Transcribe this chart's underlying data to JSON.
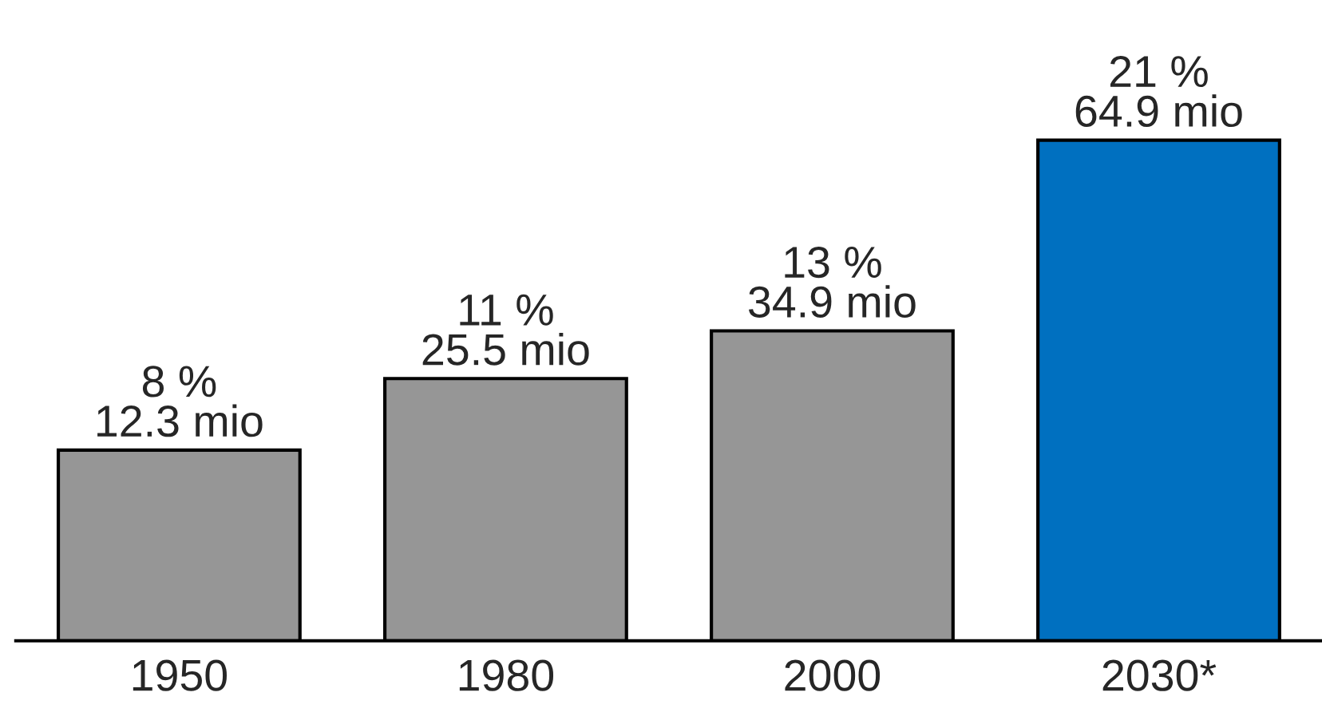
{
  "chart_data": {
    "type": "bar",
    "categories": [
      "1950",
      "1980",
      "2000",
      "2030*"
    ],
    "values": [
      8,
      11,
      13,
      21
    ],
    "colors": [
      "#969696",
      "#969696",
      "#969696",
      "#0070c0"
    ],
    "value_labels": [
      "8 %\n12.3 mio",
      "11 %\n25.5 mio",
      "13 %\n34.9 mio",
      "21 %\n64.9 mio"
    ],
    "grid": false
  }
}
